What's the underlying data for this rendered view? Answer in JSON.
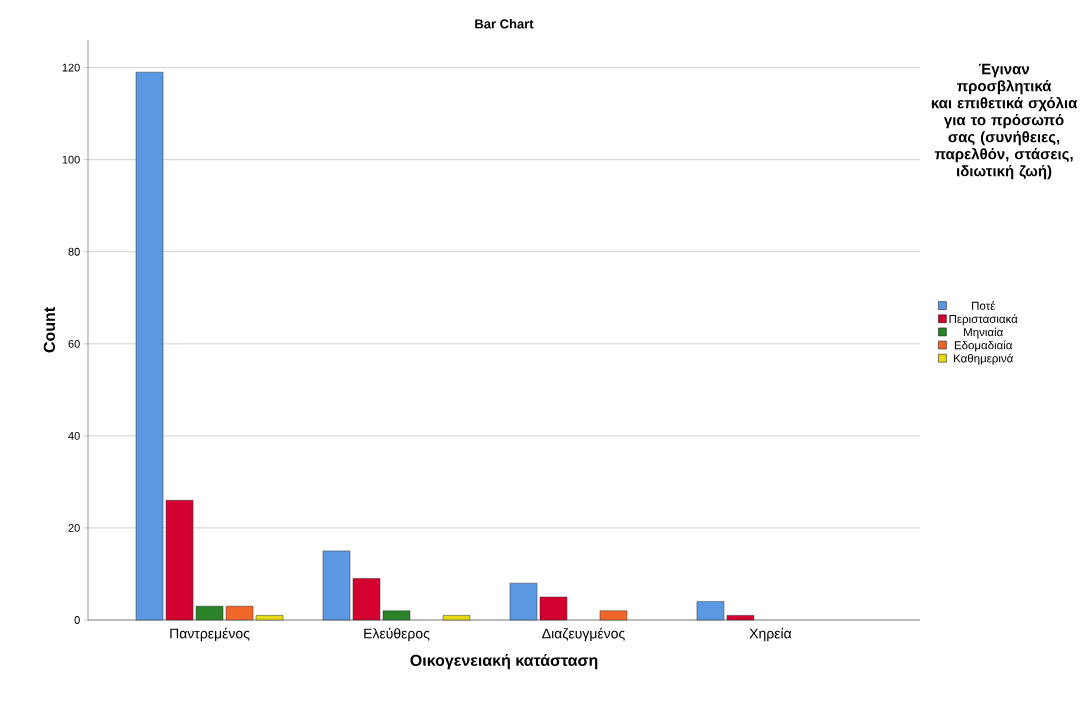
{
  "chart_data": {
    "type": "bar",
    "title": "Bar Chart",
    "xlabel": "Οικογενειακή κατάσταση",
    "ylabel": "Count",
    "legend_title": "Έγιναν προσβλητικά και επιθετικά σχόλια για το πρόσωπό σας (συνήθειες, παρελθόν, στάσεις, ιδιωτική ζωή)",
    "categories": [
      "Παντρεμένος",
      "Ελεύθερος",
      "Διαζευγμένος",
      "Χηρεία"
    ],
    "series": [
      {
        "name": "Ποτέ",
        "color": "#5a98e2",
        "values": [
          119,
          15,
          8,
          4
        ]
      },
      {
        "name": "Περιστασιακά",
        "color": "#d40030",
        "values": [
          26,
          9,
          5,
          1
        ]
      },
      {
        "name": "Μηνιαία",
        "color": "#2a8328",
        "values": [
          3,
          2,
          null,
          null
        ]
      },
      {
        "name": "Εδομαδιαία",
        "color": "#f0672a",
        "values": [
          3,
          null,
          2,
          null
        ]
      },
      {
        "name": "Καθημερινά",
        "color": "#e8d814",
        "values": [
          1,
          1,
          null,
          null
        ]
      }
    ],
    "ylim": [
      0,
      126
    ],
    "yticks": [
      0,
      20,
      40,
      60,
      80,
      100,
      120
    ],
    "grid": "y",
    "legend": "right"
  }
}
